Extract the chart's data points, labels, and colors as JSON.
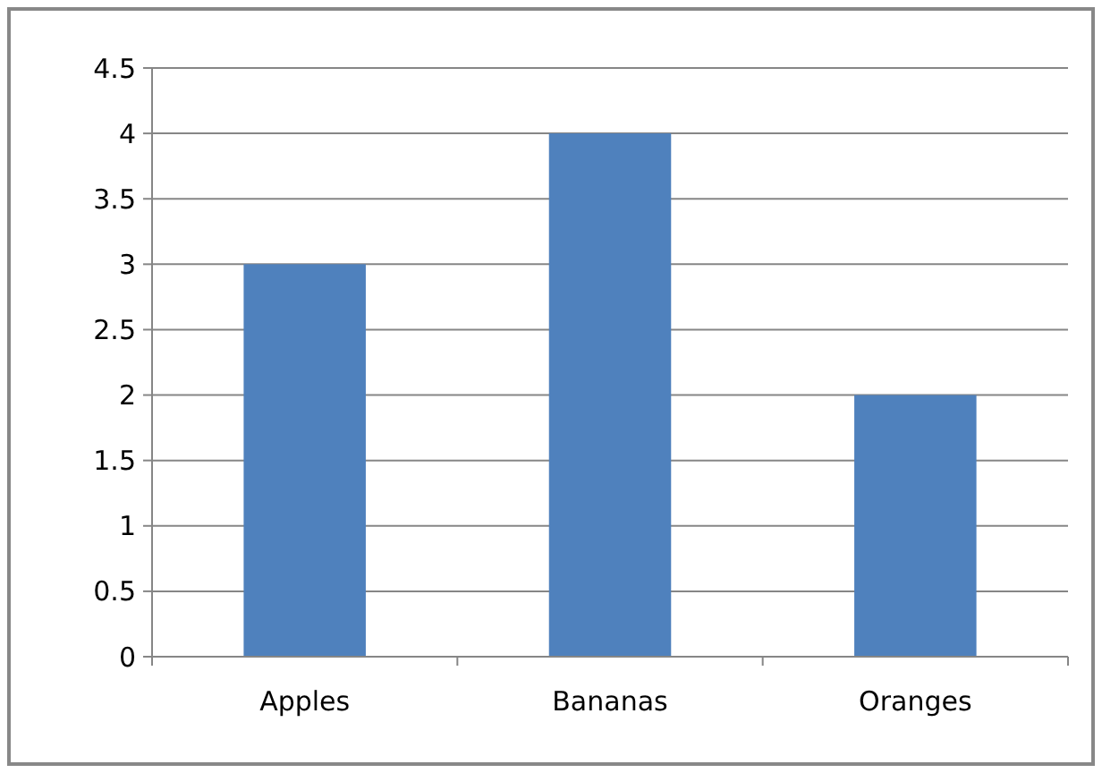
{
  "chart_data": {
    "type": "bar",
    "categories": [
      "Apples",
      "Bananas",
      "Oranges"
    ],
    "values": [
      3,
      4,
      2
    ],
    "color": "#4f81bd",
    "ylim": [
      0,
      4.5
    ],
    "yticks": [
      0,
      0.5,
      1,
      1.5,
      2,
      2.5,
      3,
      3.5,
      4,
      4.5
    ],
    "grid": "y"
  }
}
